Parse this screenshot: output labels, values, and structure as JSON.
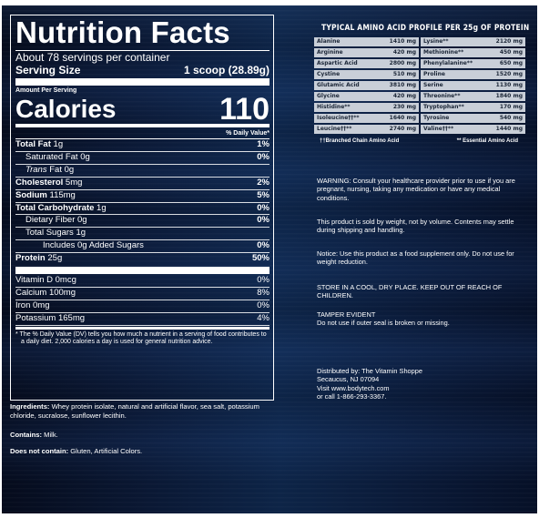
{
  "nutrition": {
    "title": "Nutrition Facts",
    "servings": "About 78 servings per container",
    "serving_size_label": "Serving Size",
    "serving_size_value": "1 scoop (28.89g)",
    "amount_per_serving": "Amount Per Serving",
    "calories_label": "Calories",
    "calories_value": "110",
    "dv_header": "% Daily Value*",
    "rows": [
      {
        "label": "Total Fat",
        "amount": "1g",
        "pct": "1%"
      },
      {
        "label": "Saturated Fat",
        "amount": "0g",
        "pct": "0%"
      },
      {
        "label": "Trans",
        "amount": "Fat 0g",
        "pct": ""
      },
      {
        "label": "Cholesterol",
        "amount": "5mg",
        "pct": "2%"
      },
      {
        "label": "Sodium",
        "amount": "115mg",
        "pct": "5%"
      },
      {
        "label": "Total Carbohydrate",
        "amount": "1g",
        "pct": "0%"
      },
      {
        "label": "Dietary Fiber",
        "amount": "0g",
        "pct": "0%"
      },
      {
        "label": "Total Sugars",
        "amount": "1g",
        "pct": ""
      },
      {
        "label": "Includes 0g Added Sugars",
        "amount": "",
        "pct": "0%"
      },
      {
        "label": "Protein",
        "amount": "25g",
        "pct": "50%"
      }
    ],
    "vitamins": [
      {
        "label": "Vitamin D 0mcg",
        "pct": "0%"
      },
      {
        "label": "Calcium 100mg",
        "pct": "8%"
      },
      {
        "label": "Iron 0mg",
        "pct": "0%"
      },
      {
        "label": "Potassium 165mg",
        "pct": "4%"
      }
    ],
    "footnote": "* The % Daily Value (DV) tells you how much a nutrient in a serving of food contributes to a daily diet. 2,000 calories a day is used for general nutrition advice."
  },
  "ingredients": {
    "label": "Ingredients:",
    "text": "Whey protein isolate, natural and artificial flavor, sea salt, potassium chloride, sucralose, sunflower lecithin."
  },
  "contains": {
    "label": "Contains:",
    "text": "Milk."
  },
  "does_not_contain": {
    "label": "Does not contain:",
    "text": "Gluten, Artificial Colors."
  },
  "amino": {
    "title": "TYPICAL AMINO ACID PROFILE PER 25g OF PROTEIN",
    "cells": [
      {
        "name": "Alanine",
        "value": "1410 mg"
      },
      {
        "name": "Lysine**",
        "value": "2120 mg"
      },
      {
        "name": "Arginine",
        "value": "420 mg"
      },
      {
        "name": "Methionine**",
        "value": "450 mg"
      },
      {
        "name": "Aspartic Acid",
        "value": "2800 mg"
      },
      {
        "name": "Phenylalanine**",
        "value": "650 mg"
      },
      {
        "name": "Cystine",
        "value": "510 mg"
      },
      {
        "name": "Proline",
        "value": "1520 mg"
      },
      {
        "name": "Glutamic Acid",
        "value": "3810 mg"
      },
      {
        "name": "Serine",
        "value": "1130 mg"
      },
      {
        "name": "Glycine",
        "value": "420 mg"
      },
      {
        "name": "Threonine**",
        "value": "1840 mg"
      },
      {
        "name": "Histidine**",
        "value": "230 mg"
      },
      {
        "name": "Tryptophan**",
        "value": "170 mg"
      },
      {
        "name": "Isoleucine††**",
        "value": "1640 mg"
      },
      {
        "name": "Tyrosine",
        "value": "540 mg"
      },
      {
        "name": "Leucine††**",
        "value": "2740 mg"
      },
      {
        "name": "Valine††**",
        "value": "1440 mg"
      }
    ],
    "legend_bcaa": "††Branched Chain Amino Acid",
    "legend_eaa": "** Essential Amino Acid"
  },
  "notes": {
    "warning": "WARNING: Consult your healthcare provider prior to use if you are pregnant, nursing, taking any medication or have any medical conditions.",
    "weight": "This product is sold by weight, not by volume. Contents may settle during shipping and handling.",
    "notice": "Notice: Use this product as a food supplement only. Do not use for weight reduction.",
    "store": "STORE IN A COOL, DRY PLACE. KEEP OUT OF REACH OF CHILDREN.",
    "tamper_title": "TAMPER EVIDENT",
    "tamper_text": "Do not use if outer seal is broken or missing.",
    "distributed": "Distributed by: The Vitamin Shoppe",
    "address": "Secaucus, NJ 07094",
    "visit": "Visit www.bodytech.com",
    "call": "or call 1-866-293-3367."
  },
  "colors": {
    "background": "#0b1e3d",
    "text": "#ffffff",
    "cell": "#c9cfd8"
  }
}
